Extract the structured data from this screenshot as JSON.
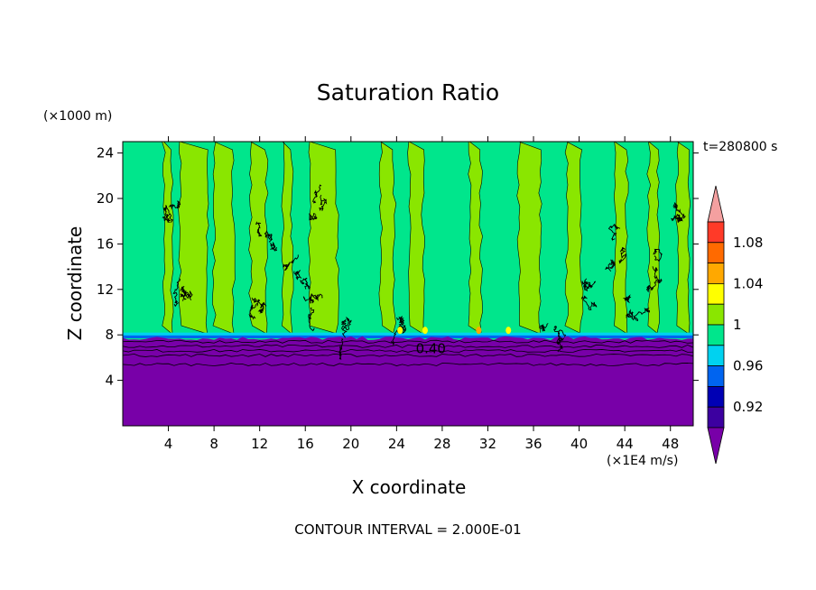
{
  "chart_data": {
    "type": "heatmap",
    "title": "Saturation Ratio",
    "xlabel": "X coordinate",
    "ylabel": "Z coordinate",
    "x_unit": "(×1E4 m/s)",
    "y_unit": "(×1000 m)",
    "timestamp": "t=280800 s",
    "footer": "CONTOUR INTERVAL = 2.000E-01",
    "xlim": [
      0,
      50
    ],
    "ylim": [
      0,
      25
    ],
    "x_ticks": [
      4,
      8,
      12,
      16,
      20,
      24,
      28,
      32,
      36,
      40,
      44,
      48
    ],
    "y_ticks": [
      4,
      8,
      12,
      16,
      20,
      24
    ],
    "colorbar": {
      "labels": [
        {
          "value": 1.08,
          "text": "1.08"
        },
        {
          "value": 1.04,
          "text": "1.04"
        },
        {
          "value": 1.0,
          "text": "1"
        },
        {
          "value": 0.96,
          "text": "0.96"
        },
        {
          "value": 0.92,
          "text": "0.92"
        }
      ],
      "levels": [
        {
          "from": 1.1,
          "to": null,
          "color": "#f4a0a0"
        },
        {
          "from": 1.08,
          "to": 1.1,
          "color": "#ff3a28"
        },
        {
          "from": 1.06,
          "to": 1.08,
          "color": "#ff6a00"
        },
        {
          "from": 1.04,
          "to": 1.06,
          "color": "#ffa800"
        },
        {
          "from": 1.02,
          "to": 1.04,
          "color": "#ffff00"
        },
        {
          "from": 1.0,
          "to": 1.02,
          "color": "#8ae600"
        },
        {
          "from": 0.98,
          "to": 1.0,
          "color": "#00e68c"
        },
        {
          "from": 0.96,
          "to": 0.98,
          "color": "#00d2f0"
        },
        {
          "from": 0.94,
          "to": 0.96,
          "color": "#0064f0"
        },
        {
          "from": 0.92,
          "to": 0.94,
          "color": "#0000b4"
        },
        {
          "from": 0.9,
          "to": 0.92,
          "color": "#3c00a0"
        },
        {
          "from": null,
          "to": 0.9,
          "color": "#7800a8"
        }
      ]
    },
    "contour_labels": [
      {
        "text": "0.40",
        "x": 27.0,
        "z": 6.8
      }
    ],
    "regions": {
      "lower_dry_layer": {
        "z_top": 7.7,
        "color": "#7800a8"
      },
      "near_saturated_green": "#00e68c",
      "slightly_supersaturated_yellowgreen": "#8ae600",
      "yellowgreen_columns_x": [
        [
          3.6,
          4.3
        ],
        [
          5.0,
          7.4
        ],
        [
          8.0,
          9.7
        ],
        [
          11.2,
          12.6
        ],
        [
          14.0,
          14.8
        ],
        [
          16.4,
          18.8
        ],
        [
          22.6,
          23.8
        ],
        [
          25.1,
          26.3
        ],
        [
          30.4,
          31.4
        ],
        [
          34.7,
          36.6
        ],
        [
          38.9,
          40.2
        ],
        [
          43.1,
          44.2
        ],
        [
          46.1,
          46.9
        ],
        [
          48.6,
          49.6
        ]
      ]
    }
  }
}
